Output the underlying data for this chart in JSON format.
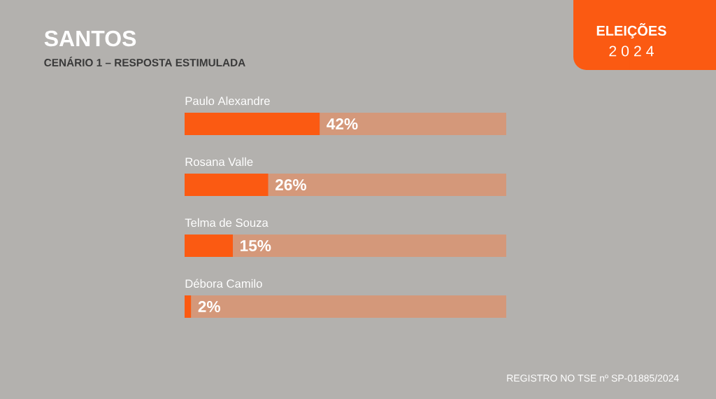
{
  "chart_data": {
    "type": "bar",
    "orientation": "horizontal",
    "stacked": true,
    "title": "SANTOS",
    "subtitle": "CENÁRIO 1 – RESPOSTA ESTIMULADA",
    "categories": [
      "Paulo Alexandre",
      "Rosana Valle",
      "Telma de Souza",
      "Débora Camilo"
    ],
    "series": [
      {
        "color": "#fb5a12",
        "values": [
          42,
          26,
          15,
          2
        ],
        "value_labels": [
          "42%",
          "26%",
          "15%",
          "2%"
        ]
      },
      {
        "color": "#d4987a",
        "values": [
          58,
          74,
          85,
          98
        ]
      }
    ],
    "tick_labels": "y",
    "annotations": [
      "ELEIÇÕES",
      "2 0 2 4",
      "REGISTRO NO TSE nº SP-01885/2024"
    ]
  }
}
